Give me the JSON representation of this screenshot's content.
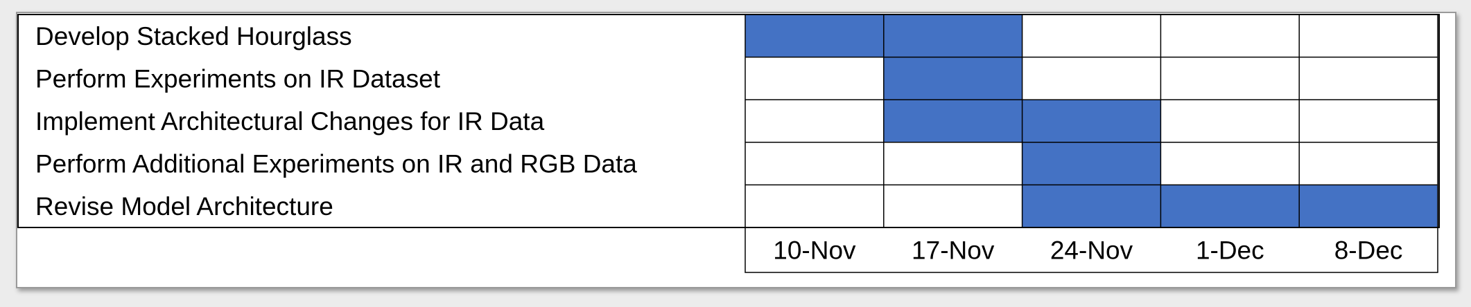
{
  "chart_data": {
    "type": "gantt",
    "title": "",
    "xlabel": "",
    "ylabel": "",
    "periods": [
      "10-Nov",
      "17-Nov",
      "24-Nov",
      "1-Dec",
      "8-Dec"
    ],
    "tasks": [
      {
        "name": "Develop Stacked Hourglass",
        "active": [
          "10-Nov",
          "17-Nov"
        ]
      },
      {
        "name": "Perform Experiments on IR Dataset",
        "active": [
          "17-Nov"
        ]
      },
      {
        "name": "Implement Architectural Changes for IR Data",
        "active": [
          "17-Nov",
          "24-Nov"
        ]
      },
      {
        "name": "Perform Additional Experiments on IR and RGB Data",
        "active": [
          "24-Nov"
        ]
      },
      {
        "name": "Revise Model Architecture",
        "active": [
          "24-Nov",
          "1-Dec",
          "8-Dec"
        ]
      }
    ],
    "colors": {
      "active": "#4472C4",
      "grid": "#000000",
      "background": "#FFFFFF"
    },
    "grid": true,
    "legend": "none"
  }
}
